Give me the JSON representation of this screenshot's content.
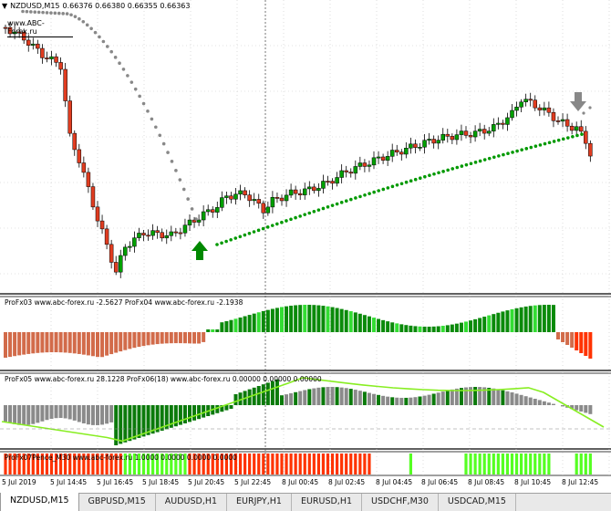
{
  "header": {
    "symbol": "NZDUSD,M15",
    "prices": "0.66376 0.66380 0.66355 0.66363",
    "site": "www.ABC-Forex.ru"
  },
  "indicators": {
    "pane1": "ProFx03 www.abc-forex.ru -2.5627  ProFx04 www.abc-forex.ru -2.1938",
    "pane2": "ProFx05 www.abc-forex.ru 28.1228  ProFx06(18) www.abc-forex.ru 0.00000 0.00000 0.00000",
    "pane3": "ProFx07Pence_M30 www.abc-forex.ru 1.0000 0.0000 0.0000 0.0000"
  },
  "time_axis": [
    "5 Jul 2019",
    "5 Jul 14:45",
    "5 Jul 16:45",
    "5 Jul 18:45",
    "5 Jul 20:45",
    "5 Jul 22:45",
    "8 Jul 00:45",
    "8 Jul 02:45",
    "8 Jul 04:45",
    "8 Jul 06:45",
    "8 Jul 08:45",
    "8 Jul 10:45",
    "8 Jul 12:45"
  ],
  "tabs": [
    {
      "label": "NZDUSD,M15",
      "active": true
    },
    {
      "label": "GBPUSD,M15",
      "active": false
    },
    {
      "label": "AUDUSD,H1",
      "active": false
    },
    {
      "label": "EURJPY,H1",
      "active": false
    },
    {
      "label": "EURUSD,H1",
      "active": false
    },
    {
      "label": "USDCHF,M30",
      "active": false
    },
    {
      "label": "USDCAD,M15",
      "active": false
    }
  ],
  "colors": {
    "bull": "#00a000",
    "bear": "#e03c20",
    "hist_up": "#0a8a0a",
    "hist_up_light": "#33dd33",
    "hist_down": "#d26b4a",
    "hist_down_strong": "#ff3300",
    "hist_gray": "#8a8a8a",
    "hist_green_dark": "#0b7a0b",
    "line_green": "#88ee22",
    "fence_red": "#ff3300",
    "fence_green": "#55ff22",
    "dots_gray": "#888888",
    "dots_green": "#009900",
    "arrow_up": "#008800",
    "arrow_down": "#888888"
  }
}
